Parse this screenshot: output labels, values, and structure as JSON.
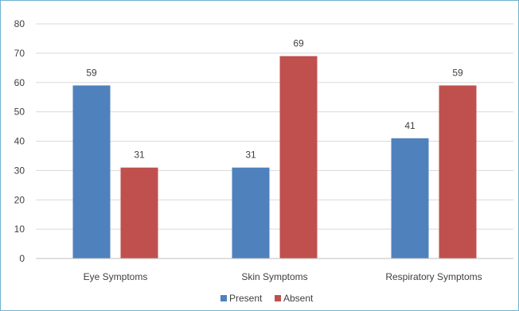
{
  "chart_data": {
    "type": "bar",
    "categories": [
      "Eye Symptoms",
      "Skin Symptoms",
      "Respiratory Symptoms"
    ],
    "series": [
      {
        "name": "Present",
        "values": [
          59,
          31,
          41
        ],
        "color": "#4f81bd"
      },
      {
        "name": "Absent",
        "values": [
          31,
          69,
          59
        ],
        "color": "#c0504d"
      }
    ],
    "ylim": [
      0,
      80
    ],
    "yticks": [
      0,
      10,
      20,
      30,
      40,
      50,
      60,
      70,
      80
    ],
    "grid": true,
    "gridColor": "#d9d9d9",
    "legend": "bottom",
    "data_labels": true,
    "title": "",
    "xlabel": "",
    "ylabel": ""
  }
}
